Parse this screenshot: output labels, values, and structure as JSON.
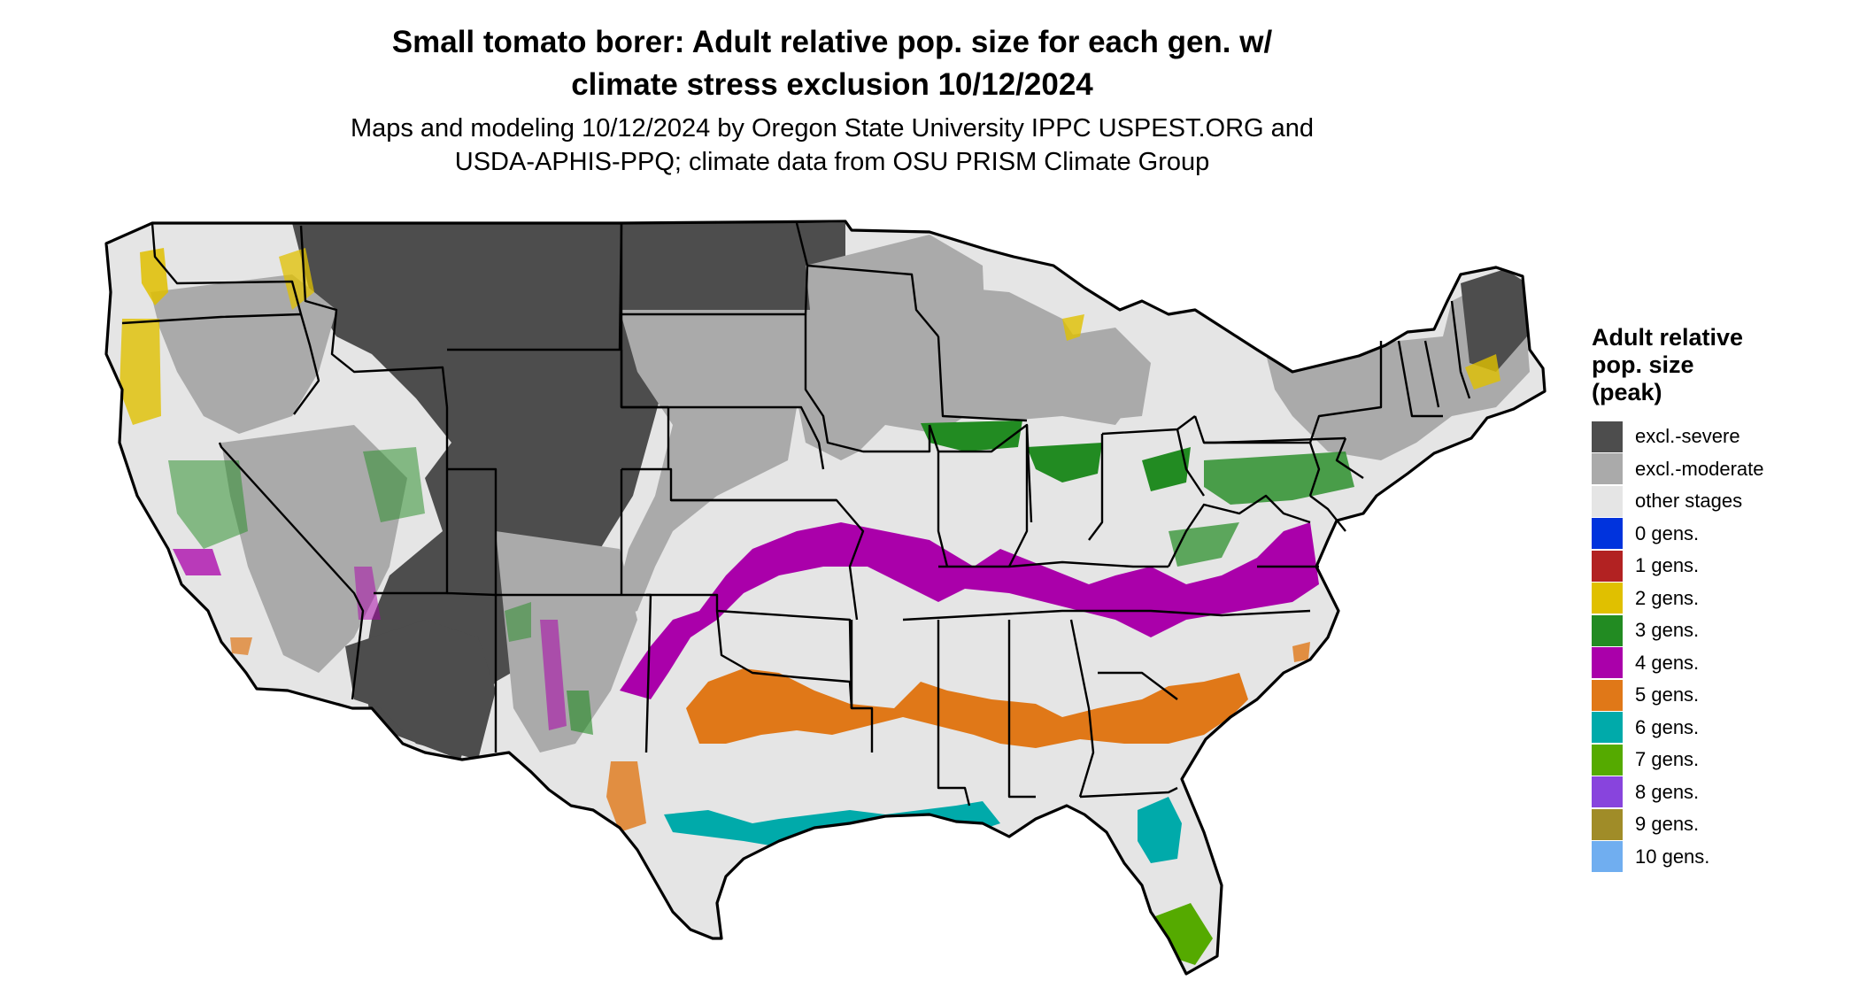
{
  "title": {
    "line1": "Small tomato borer: Adult relative pop. size for each gen. w/",
    "line2": "climate stress exclusion 10/12/2024"
  },
  "subtitle": {
    "line1": "Maps and modeling 10/12/2024 by Oregon State University IPPC USPEST.ORG and",
    "line2": "USDA-APHIS-PPQ; climate data from OSU PRISM Climate Group"
  },
  "legend": {
    "title_line1": "Adult relative",
    "title_line2": "pop. size",
    "title_line3": "(peak)",
    "items": [
      {
        "label": "excl.-severe",
        "color": "#4d4d4d"
      },
      {
        "label": "excl.-moderate",
        "color": "#aaaaaa"
      },
      {
        "label": "other stages",
        "color": "#e5e5e5"
      },
      {
        "label": "0 gens.",
        "color": "#0033dd"
      },
      {
        "label": "1 gens.",
        "color": "#b22222"
      },
      {
        "label": "2 gens.",
        "color": "#e0c000"
      },
      {
        "label": "3 gens.",
        "color": "#228b22"
      },
      {
        "label": "4 gens.",
        "color": "#aa00aa"
      },
      {
        "label": "5 gens.",
        "color": "#e07818"
      },
      {
        "label": "6 gens.",
        "color": "#00aaaa"
      },
      {
        "label": "7 gens.",
        "color": "#55aa00"
      },
      {
        "label": "8 gens.",
        "color": "#8844dd"
      },
      {
        "label": "9 gens.",
        "color": "#a08c28"
      },
      {
        "label": "10 gens.",
        "color": "#70aef0"
      }
    ]
  }
}
